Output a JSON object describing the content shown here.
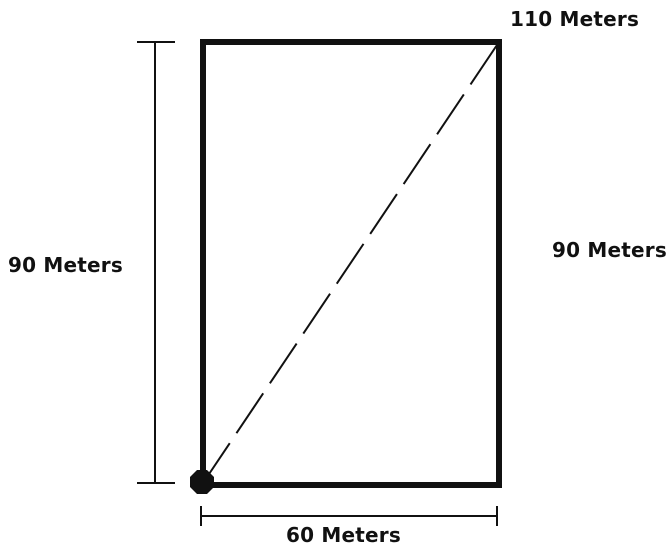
{
  "labels": {
    "diagonal": "110 Meters",
    "left_height": "90 Meters",
    "right_height": "90 Meters",
    "width": "60 Meters"
  },
  "colors": {
    "line": "#111111",
    "background": "#ffffff"
  }
}
